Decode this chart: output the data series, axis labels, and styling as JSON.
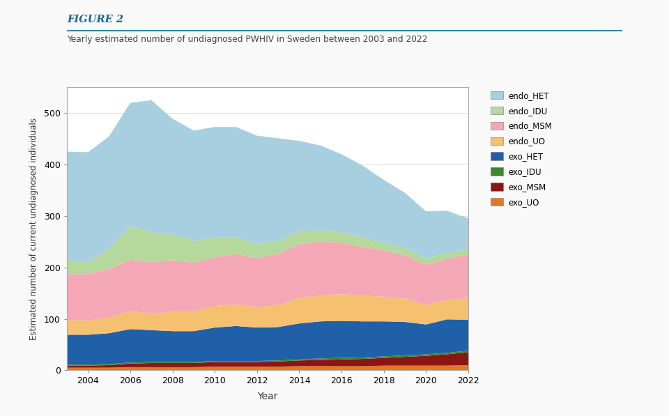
{
  "years": [
    2003,
    2004,
    2005,
    2006,
    2007,
    2008,
    2009,
    2010,
    2011,
    2012,
    2013,
    2014,
    2015,
    2016,
    2017,
    2018,
    2019,
    2020,
    2021,
    2022
  ],
  "series": {
    "exo_UO": [
      5,
      5,
      5,
      6,
      6,
      6,
      6,
      7,
      7,
      7,
      7,
      8,
      8,
      8,
      8,
      9,
      9,
      9,
      9,
      10
    ],
    "exo_MSM": [
      4,
      4,
      5,
      7,
      8,
      8,
      8,
      9,
      9,
      9,
      10,
      11,
      12,
      13,
      14,
      15,
      17,
      19,
      22,
      25
    ],
    "exo_IDU": [
      2,
      2,
      2,
      2,
      2,
      2,
      2,
      2,
      2,
      2,
      2,
      2,
      3,
      3,
      3,
      3,
      3,
      3,
      3,
      3
    ],
    "exo_HET": [
      58,
      58,
      60,
      65,
      62,
      60,
      60,
      65,
      68,
      65,
      65,
      70,
      72,
      72,
      70,
      68,
      65,
      58,
      65,
      60
    ],
    "endo_UO": [
      28,
      28,
      30,
      35,
      32,
      38,
      38,
      42,
      42,
      40,
      42,
      50,
      50,
      52,
      50,
      48,
      45,
      38,
      38,
      42
    ],
    "endo_MSM": [
      90,
      90,
      95,
      100,
      100,
      100,
      95,
      95,
      98,
      95,
      100,
      105,
      105,
      100,
      95,
      90,
      85,
      78,
      80,
      85
    ],
    "endo_IDU": [
      28,
      22,
      40,
      65,
      58,
      50,
      42,
      38,
      32,
      28,
      25,
      25,
      22,
      20,
      18,
      15,
      13,
      12,
      11,
      10
    ],
    "endo_HET": [
      210,
      215,
      218,
      240,
      257,
      225,
      215,
      215,
      215,
      210,
      200,
      175,
      165,
      152,
      140,
      122,
      108,
      92,
      82,
      60
    ]
  },
  "colors": {
    "endo_HET": "#a8cfe0",
    "endo_IDU": "#b5d99c",
    "endo_MSM": "#f4a8b5",
    "endo_UO": "#f5c070",
    "exo_HET": "#2060a8",
    "exo_IDU": "#3a8830",
    "exo_MSM": "#8b1515",
    "exo_UO": "#e07828"
  },
  "legend_order": [
    "endo_HET",
    "endo_IDU",
    "endo_MSM",
    "endo_UO",
    "exo_HET",
    "exo_IDU",
    "exo_MSM",
    "exo_UO"
  ],
  "title": "Figure 2",
  "subtitle": "Yearly estimated number of undiagnosed PWHIV in Sweden between 2003 and 2022",
  "xlabel": "Year",
  "ylabel": "Estimated number of current undiagnosed individuals",
  "ylim": [
    0,
    550
  ],
  "yticks": [
    0,
    100,
    200,
    300,
    400,
    500
  ],
  "xticks": [
    2004,
    2006,
    2008,
    2010,
    2012,
    2014,
    2016,
    2018,
    2020,
    2022
  ],
  "background_color": "#f9f9f9",
  "plot_bg": "#ffffff",
  "title_color": "#1a6496",
  "subtitle_color": "#444444"
}
